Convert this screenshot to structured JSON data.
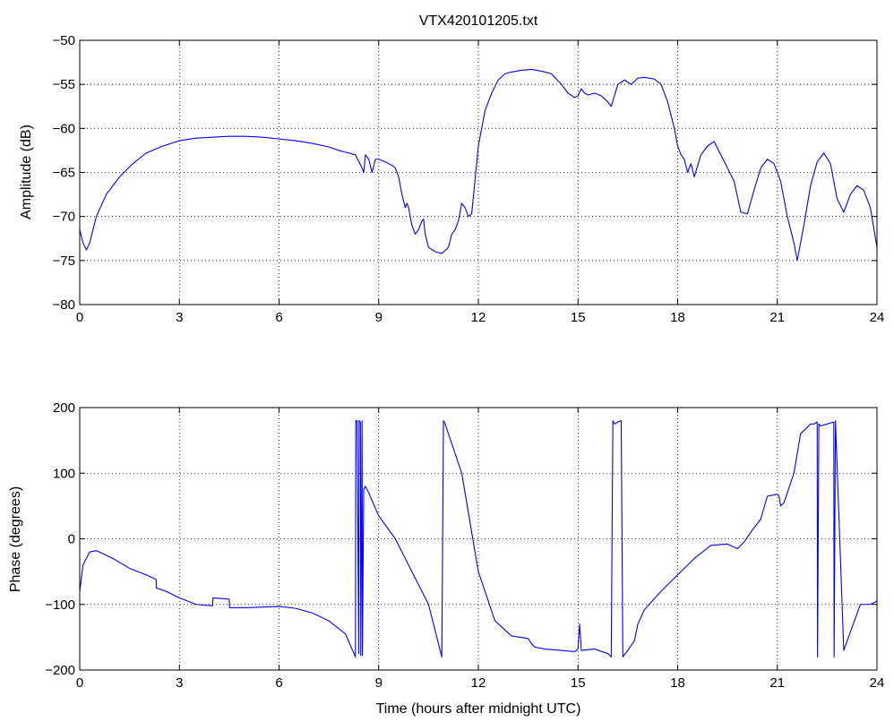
{
  "chart_data": [
    {
      "type": "line",
      "title": "VTX420101205.txt",
      "xlabel": "",
      "ylabel": "Amplitude (dB)",
      "xlim": [
        0,
        24
      ],
      "ylim": [
        -80,
        -50
      ],
      "xticks": [
        0,
        3,
        6,
        9,
        12,
        15,
        18,
        21,
        24
      ],
      "yticks": [
        -80,
        -75,
        -70,
        -65,
        -60,
        -55,
        -50
      ],
      "grid": true,
      "color": "#0000ff",
      "series": [
        {
          "x": [
            0,
            0.1,
            0.2,
            0.3,
            0.5,
            0.8,
            1.2,
            1.6,
            2.0,
            2.5,
            3.0,
            3.5,
            4.0,
            4.5,
            5.0,
            5.5,
            6.0,
            6.5,
            7.0,
            7.5,
            7.8,
            8.0,
            8.3,
            8.5,
            8.55,
            8.6,
            8.7,
            8.8,
            8.9,
            9.0,
            9.2,
            9.4,
            9.5,
            9.6,
            9.7,
            9.8,
            9.85,
            9.9,
            10.0,
            10.1,
            10.2,
            10.3,
            10.35,
            10.4,
            10.5,
            10.7,
            10.9,
            11.1,
            11.2,
            11.3,
            11.4,
            11.5,
            11.6,
            11.7,
            11.8,
            12.0,
            12.2,
            12.4,
            12.6,
            12.8,
            13.0,
            13.3,
            13.6,
            13.9,
            14.2,
            14.5,
            14.7,
            14.9,
            15.0,
            15.1,
            15.2,
            15.3,
            15.5,
            15.7,
            15.9,
            16.0,
            16.2,
            16.4,
            16.6,
            16.8,
            17.0,
            17.3,
            17.5,
            17.7,
            17.9,
            18.0,
            18.1,
            18.2,
            18.3,
            18.4,
            18.5,
            18.7,
            18.9,
            19.1,
            19.3,
            19.5,
            19.7,
            19.9,
            20.1,
            20.3,
            20.5,
            20.7,
            20.9,
            21.1,
            21.3,
            21.5,
            21.6,
            21.8,
            22.0,
            22.2,
            22.4,
            22.6,
            22.8,
            23.0,
            23.2,
            23.4,
            23.6,
            23.8,
            24.0
          ],
          "y": [
            -71.5,
            -73,
            -73.8,
            -73,
            -70,
            -67.5,
            -65.5,
            -64,
            -62.8,
            -62,
            -61.4,
            -61.1,
            -61,
            -60.9,
            -60.9,
            -61,
            -61.2,
            -61.4,
            -61.7,
            -62.1,
            -62.5,
            -62.7,
            -63,
            -64.5,
            -65,
            -63,
            -63.5,
            -65,
            -63.5,
            -63.5,
            -63.8,
            -64.2,
            -64.5,
            -65.5,
            -67.5,
            -69,
            -68.5,
            -69,
            -71,
            -72,
            -71.5,
            -70.5,
            -70.3,
            -72,
            -73.5,
            -74,
            -74.2,
            -73.5,
            -72,
            -71.5,
            -70.5,
            -68.5,
            -69,
            -70,
            -69.7,
            -62,
            -58,
            -56,
            -54.5,
            -53.8,
            -53.6,
            -53.4,
            -53.3,
            -53.5,
            -53.8,
            -55,
            -56,
            -56.5,
            -56.3,
            -55.5,
            -56,
            -56.2,
            -56,
            -56.3,
            -57,
            -57.5,
            -55,
            -54.5,
            -55,
            -54.3,
            -54.2,
            -54.4,
            -55,
            -57,
            -60,
            -62,
            -63,
            -63.5,
            -65,
            -64,
            -65.5,
            -63,
            -62,
            -61.5,
            -63,
            -64.5,
            -66,
            -69.5,
            -69.7,
            -67,
            -64.5,
            -63.5,
            -64,
            -66,
            -70,
            -73,
            -75,
            -71,
            -66.5,
            -63.8,
            -62.8,
            -64,
            -68,
            -69.5,
            -67.5,
            -66.5,
            -67,
            -69,
            -73.5
          ]
        }
      ]
    },
    {
      "type": "line",
      "title": "",
      "xlabel": "Time (hours after midnight UTC)",
      "ylabel": "Phase (degrees)",
      "xlim": [
        0,
        24
      ],
      "ylim": [
        -200,
        200
      ],
      "xticks": [
        0,
        3,
        6,
        9,
        12,
        15,
        18,
        21,
        24
      ],
      "yticks": [
        -200,
        -100,
        0,
        100,
        200
      ],
      "grid": true,
      "color": "#0000ff",
      "series": [
        {
          "x": [
            0,
            0.1,
            0.3,
            0.5,
            1.0,
            1.5,
            2.0,
            2.3,
            2.31,
            2.6,
            3.0,
            3.5,
            4.0,
            4.01,
            4.5,
            4.51,
            5.0,
            5.5,
            6.0,
            6.5,
            7.0,
            7.5,
            8.0,
            8.3,
            8.31,
            8.35,
            8.4,
            8.41,
            8.45,
            8.46,
            8.5,
            8.51,
            8.55,
            8.6,
            8.7,
            9.0,
            9.5,
            10.0,
            10.5,
            10.85,
            10.9,
            10.95,
            11.0,
            11.5,
            12.0,
            12.5,
            13.0,
            13.5,
            13.6,
            13.7,
            14.0,
            14.5,
            14.9,
            15.0,
            15.05,
            15.1,
            15.5,
            15.9,
            16.0,
            16.05,
            16.1,
            16.2,
            16.3,
            16.35,
            16.5,
            16.7,
            16.8,
            17.0,
            17.5,
            18.0,
            18.5,
            19.0,
            19.5,
            19.8,
            20.0,
            20.2,
            20.5,
            20.7,
            21.0,
            21.05,
            21.1,
            21.2,
            21.5,
            21.7,
            22.0,
            22.1,
            22.2,
            22.21,
            22.25,
            22.3,
            22.5,
            22.7,
            22.71,
            22.75,
            23.0,
            23.5,
            23.8,
            24.0
          ],
          "y": [
            -80,
            -40,
            -20,
            -18,
            -30,
            -45,
            -55,
            -62,
            -75,
            -80,
            -90,
            -100,
            -102,
            -90,
            -92,
            -105,
            -105,
            -104,
            -103,
            -106,
            -113,
            -125,
            -145,
            -180,
            180,
            180,
            -175,
            180,
            178,
            -178,
            180,
            -178,
            75,
            80,
            70,
            35,
            0,
            -50,
            -100,
            -170,
            -180,
            180,
            175,
            100,
            -50,
            -125,
            -148,
            -152,
            -160,
            -165,
            -168,
            -170,
            -172,
            -168,
            -130,
            -170,
            -168,
            -175,
            -180,
            180,
            175,
            178,
            180,
            -180,
            -170,
            -155,
            -130,
            -108,
            -80,
            -55,
            -30,
            -10,
            -8,
            -15,
            -5,
            10,
            30,
            65,
            68,
            65,
            50,
            55,
            100,
            160,
            175,
            175,
            178,
            -180,
            175,
            172,
            175,
            178,
            -180,
            180,
            -170,
            -100,
            -100,
            -95
          ]
        }
      ]
    }
  ]
}
